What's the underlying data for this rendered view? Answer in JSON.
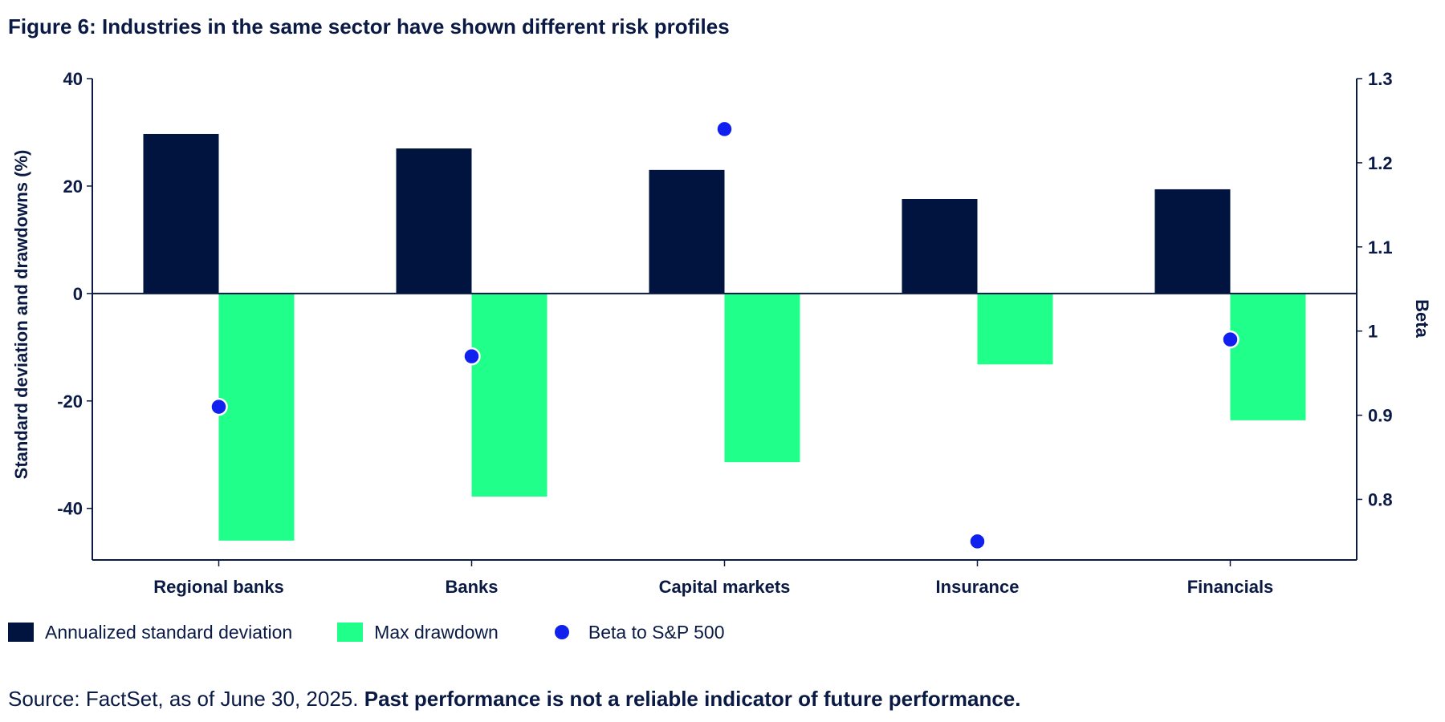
{
  "title": "Figure 6: Industries in the same sector have shown different risk profiles",
  "source_text": "Source: FactSet, as of June 30, 2025.",
  "disclaimer": "Past performance is not a reliable indicator of future performance.",
  "colors": {
    "std_dev": "#00143f",
    "drawdown": "#1fff8a",
    "beta": "#1020ee",
    "text": "#0a1a44"
  },
  "chart_data": {
    "type": "bar",
    "categories": [
      "Regional banks",
      "Banks",
      "Capital markets",
      "Insurance",
      "Financials"
    ],
    "series": [
      {
        "name": "Annualized standard deviation",
        "type": "bar",
        "axis": "left",
        "values": [
          29.7,
          27.0,
          23.0,
          17.6,
          19.4
        ]
      },
      {
        "name": "Max drawdown",
        "type": "bar",
        "axis": "left",
        "values": [
          -46.0,
          -37.8,
          -31.4,
          -13.2,
          -23.6
        ]
      },
      {
        "name": "Beta to S&P 500",
        "type": "scatter",
        "axis": "right",
        "values": [
          0.91,
          0.97,
          1.24,
          0.75,
          0.99
        ]
      }
    ],
    "ylabel": "Standard deviation and drawdowns (%)",
    "ylim": [
      -49.6,
      40
    ],
    "yticks": [
      40,
      20,
      0,
      -20,
      -40
    ],
    "y2label": "Beta",
    "y2lim": [
      0.728,
      1.3
    ],
    "y2ticks": [
      "1.3",
      "1.2",
      "1.1",
      "1",
      "0.9",
      "0.8"
    ],
    "legend_position": "bottom-left",
    "grid": false
  }
}
